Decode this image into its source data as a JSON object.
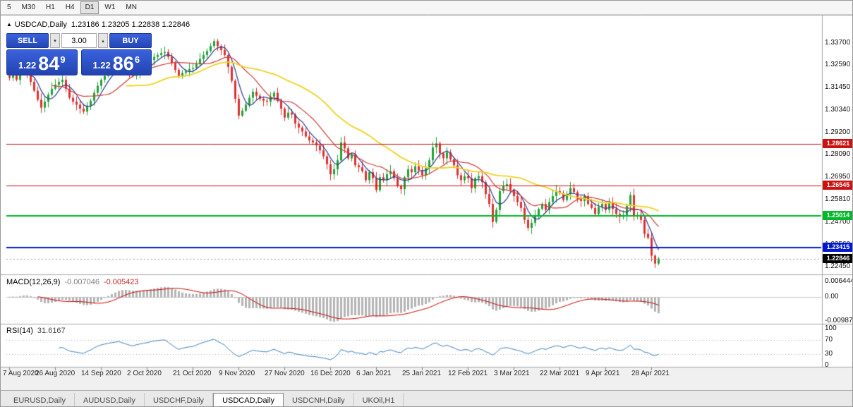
{
  "toolbar": {
    "periods": [
      "5",
      "M30",
      "H1",
      "H4",
      "D1",
      "W1",
      "MN"
    ],
    "active": "D1"
  },
  "chart_header": {
    "collapse_icon": "▲",
    "symbol": "USDCAD,Daily",
    "ohlc": "1.23186 1.23205 1.22838 1.22846"
  },
  "trade_panel": {
    "sell_label": "SELL",
    "buy_label": "BUY",
    "volume": "3.00",
    "sell_price": {
      "whole": "1.22",
      "pips": "84",
      "pip_fraction": "9"
    },
    "buy_price": {
      "whole": "1.22",
      "pips": "86",
      "pip_fraction": "6"
    },
    "button_color": "#2a52cc"
  },
  "icons": {
    "spin_down": "▾",
    "spin_up": "▴"
  },
  "price_axis": [
    "1.33700",
    "1.32590",
    "1.31450",
    "1.30340",
    "1.29200",
    "1.28090",
    "1.26950",
    "1.25810",
    "1.24700",
    "1.23560",
    "1.22450"
  ],
  "macd_panel": {
    "title": "MACD(12,26,9)",
    "value_main": "-0.007046",
    "value_signal": "-0.005423",
    "axis": [
      "0.006444",
      "0.00",
      "-0.00987"
    ]
  },
  "rsi_panel": {
    "title": "RSI(14)",
    "value": "31.6167",
    "axis": [
      "100",
      "70",
      "30",
      "0"
    ],
    "levels": [
      30,
      70
    ]
  },
  "date_axis": [
    "7 Aug 2020",
    "26 Aug 2020",
    "14 Sep 2020",
    "2 Oct 2020",
    "21 Oct 2020",
    "9 Nov 2020",
    "27 Nov 2020",
    "16 Dec 2020",
    "6 Jan 2021",
    "25 Jan 2021",
    "12 Feb 2021",
    "3 Mar 2021",
    "22 Mar 2021",
    "9 Apr 2021",
    "28 Apr 2021"
  ],
  "tabs": {
    "items": [
      "EURUSD,Daily",
      "AUDUSD,Daily",
      "USDCHF,Daily",
      "USDCAD,Daily",
      "USDCNH,Daily",
      "UKOil,H1"
    ],
    "active": "USDCAD,Daily"
  },
  "chart_data": {
    "type": "candlestick",
    "symbol": "USDCAD",
    "period": "Daily",
    "ylim": [
      1.2227,
      1.3491
    ],
    "bars_per_label": 13,
    "last_price": 1.22846,
    "last_price_label": "1.22846",
    "bull_color": "#1fa336",
    "bear_color": "#e03030",
    "closes": [
      1.3195,
      1.321,
      1.3185,
      1.323,
      1.324,
      1.3215,
      1.3175,
      1.313,
      1.3085,
      1.3045,
      1.3075,
      1.311,
      1.314,
      1.316,
      1.3175,
      1.3185,
      1.314,
      1.3095,
      1.3075,
      1.306,
      1.304,
      1.3025,
      1.3055,
      1.308,
      1.312,
      1.3155,
      1.3185,
      1.3205,
      1.3225,
      1.324,
      1.3255,
      1.327,
      1.325,
      1.3235,
      1.3215,
      1.3205,
      1.3225,
      1.324,
      1.3255,
      1.3265,
      1.3285,
      1.33,
      1.331,
      1.332,
      1.3325,
      1.33,
      1.327,
      1.3235,
      1.3205,
      1.322,
      1.323,
      1.324,
      1.3245,
      1.3265,
      1.329,
      1.331,
      1.333,
      1.3355,
      1.338,
      1.3355,
      1.3335,
      1.331,
      1.325,
      1.318,
      1.309,
      1.3005,
      1.303,
      1.306,
      1.3095,
      1.3125,
      1.3105,
      1.309,
      1.308,
      1.3075,
      1.31,
      1.312,
      1.308,
      1.304,
      1.2995,
      1.302,
      1.301,
      1.2965,
      1.2945,
      1.2925,
      1.29,
      1.288,
      1.287,
      1.2855,
      1.283,
      1.28,
      1.276,
      1.271,
      1.2735,
      1.278,
      1.287,
      1.284,
      1.279,
      1.281,
      1.2755,
      1.2745,
      1.2725,
      1.268,
      1.272,
      1.269,
      1.263,
      1.2695,
      1.268,
      1.271,
      1.2725,
      1.269,
      1.265,
      1.2635,
      1.2695,
      1.2735,
      1.272,
      1.275,
      1.273,
      1.2705,
      1.274,
      1.278,
      1.2845,
      1.2865,
      1.2815,
      1.279,
      1.282,
      1.2785,
      1.2755,
      1.2705,
      1.268,
      1.27,
      1.269,
      1.264,
      1.269,
      1.27,
      1.267,
      1.261,
      1.256,
      1.247,
      1.253,
      1.2625,
      1.265,
      1.266,
      1.263,
      1.26,
      1.257,
      1.254,
      1.248,
      1.244,
      1.2465,
      1.25,
      1.2535,
      1.256,
      1.253,
      1.257,
      1.26,
      1.2625,
      1.2615,
      1.258,
      1.261,
      1.264,
      1.262,
      1.2585,
      1.2575,
      1.26,
      1.256,
      1.254,
      1.251,
      1.2545,
      1.256,
      1.253,
      1.2565,
      1.2535,
      1.251,
      1.2495,
      1.2505,
      1.255,
      1.2605,
      1.25,
      1.2505,
      1.248,
      1.241,
      1.239,
      1.23,
      1.226,
      1.2285
    ],
    "moving_averages": [
      {
        "period": 5,
        "color": "#2b3a8f"
      },
      {
        "period": 13,
        "color": "#d03a3a"
      },
      {
        "period": 34,
        "color": "#efd321"
      }
    ],
    "hlines": [
      {
        "value": 1.28621,
        "label": "1.28621",
        "color": "#cc1111",
        "width": 1
      },
      {
        "value": 1.26545,
        "label": "1.26545",
        "color": "#cc1111",
        "width": 1
      },
      {
        "value": 1.25014,
        "label": "1.25014",
        "color": "#00b82a",
        "width": 2
      },
      {
        "value": 1.23415,
        "label": "1.23415",
        "color": "#0019cc",
        "width": 2
      }
    ],
    "macd": {
      "fast": 12,
      "slow": 26,
      "signal": 9,
      "ylim": [
        -0.0105,
        0.0075
      ],
      "hist_color": "#b4b4b4",
      "signal_color": "#cc0000"
    },
    "rsi": {
      "period": 14,
      "color": "#3b7dc4",
      "ylim": [
        0,
        100
      ]
    }
  }
}
